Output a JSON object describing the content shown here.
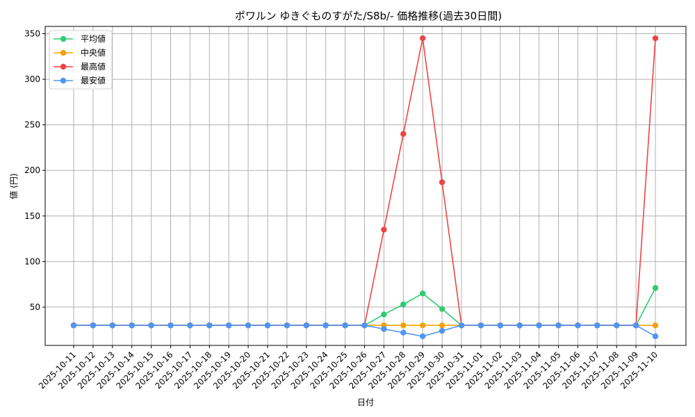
{
  "chart_data": {
    "type": "line",
    "title": "ポワルン ゆきぐものすがた/S8b/- 価格推移(過去30日間)",
    "xlabel": "日付",
    "ylabel": "値 (円)",
    "x": [
      "2025-10-11",
      "2025-10-12",
      "2025-10-13",
      "2025-10-14",
      "2025-10-15",
      "2025-10-16",
      "2025-10-17",
      "2025-10-18",
      "2025-10-19",
      "2025-10-20",
      "2025-10-21",
      "2025-10-22",
      "2025-10-23",
      "2025-10-24",
      "2025-10-25",
      "2025-10-26",
      "2025-10-27",
      "2025-10-28",
      "2025-10-29",
      "2025-10-30",
      "2025-10-31",
      "2025-11-01",
      "2025-11-02",
      "2025-11-03",
      "2025-11-04",
      "2025-11-05",
      "2025-11-06",
      "2025-11-07",
      "2025-11-08",
      "2025-11-09",
      "2025-11-10"
    ],
    "ylim": [
      8,
      358
    ],
    "yticks": [
      50,
      100,
      150,
      200,
      250,
      300,
      350
    ],
    "grid": true,
    "legend_position": "top-left",
    "series": [
      {
        "name": "平均値",
        "color": "#2ecc71",
        "values": [
          30,
          30,
          30,
          30,
          30,
          30,
          30,
          30,
          30,
          30,
          30,
          30,
          30,
          30,
          30,
          30,
          42,
          53,
          65,
          48,
          30,
          30,
          30,
          30,
          30,
          30,
          30,
          30,
          30,
          30,
          71
        ]
      },
      {
        "name": "中央値",
        "color": "#f5a10a",
        "values": [
          30,
          30,
          30,
          30,
          30,
          30,
          30,
          30,
          30,
          30,
          30,
          30,
          30,
          30,
          30,
          30,
          30,
          30,
          30,
          30,
          30,
          30,
          30,
          30,
          30,
          30,
          30,
          30,
          30,
          30,
          30
        ]
      },
      {
        "name": "最高値",
        "color": "#ef4444",
        "values": [
          30,
          30,
          30,
          30,
          30,
          30,
          30,
          30,
          30,
          30,
          30,
          30,
          30,
          30,
          30,
          30,
          135,
          240,
          345,
          187,
          30,
          30,
          30,
          30,
          30,
          30,
          30,
          30,
          30,
          30,
          345
        ]
      },
      {
        "name": "最安値",
        "color": "#4e95f5",
        "values": [
          30,
          30,
          30,
          30,
          30,
          30,
          30,
          30,
          30,
          30,
          30,
          30,
          30,
          30,
          30,
          30,
          26,
          22,
          18,
          24,
          30,
          30,
          30,
          30,
          30,
          30,
          30,
          30,
          30,
          30,
          18
        ]
      }
    ]
  }
}
